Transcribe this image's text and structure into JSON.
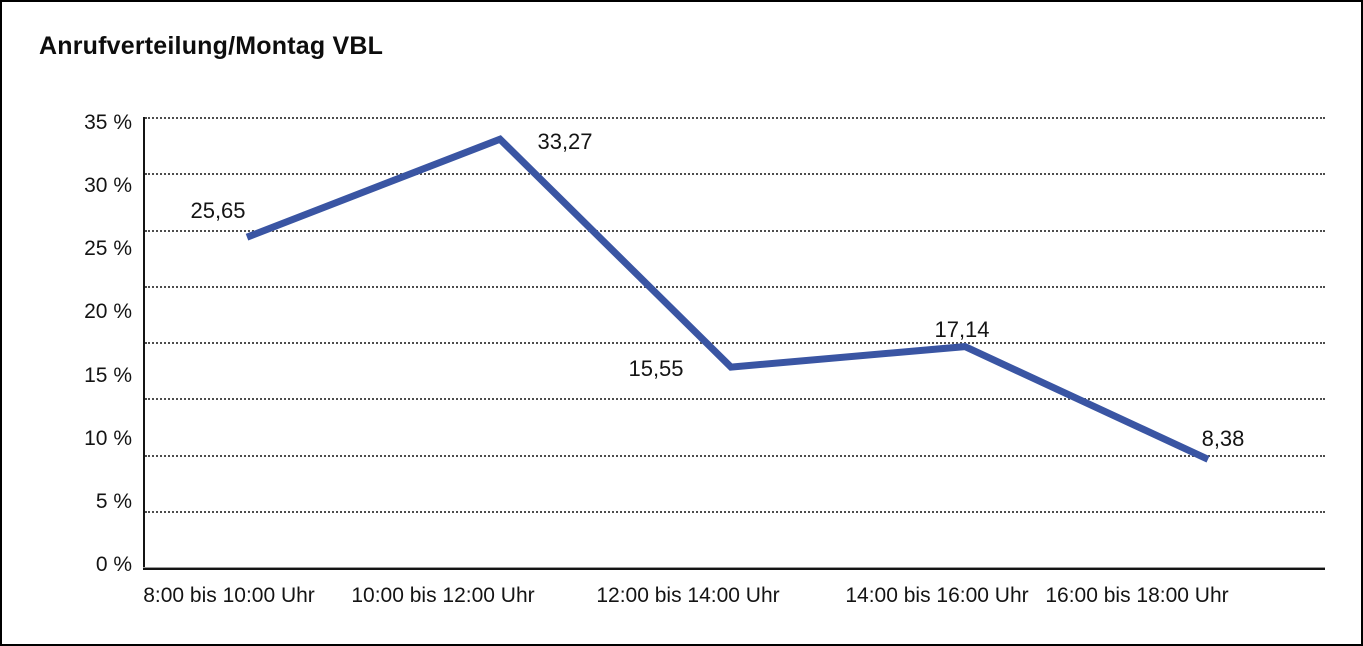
{
  "window": {
    "background_color": "#ffffff",
    "border_color": "#000000"
  },
  "chart_data": {
    "type": "line",
    "title": "Anrufverteilung/Montag VBL",
    "categories": [
      "8:00 bis 10:00 Uhr",
      "10:00 bis 12:00 Uhr",
      "12:00 bis 14:00 Uhr",
      "14:00 bis 16:00 Uhr",
      "16:00 bis 18:00 Uhr"
    ],
    "series": [
      {
        "name": "Anrufverteilung Montag VBL",
        "values": [
          25.65,
          33.27,
          15.55,
          17.14,
          8.38
        ]
      }
    ],
    "point_labels": [
      "25,65",
      "33,27",
      "15,55",
      "17,14",
      "8,38"
    ],
    "xlabel": "",
    "ylabel": "",
    "y_tick_labels": [
      "35 %",
      "30 %",
      "25 %",
      "20 %",
      "15 %",
      "10 %",
      "5 %",
      "0 %"
    ],
    "ylim": [
      0,
      35
    ],
    "y_tick_step": 5,
    "gridline_intervals": 8,
    "grid": "horizontal-dotted",
    "line_color": "#3A55A3",
    "text_color": "#141414",
    "legend_position": "none"
  }
}
